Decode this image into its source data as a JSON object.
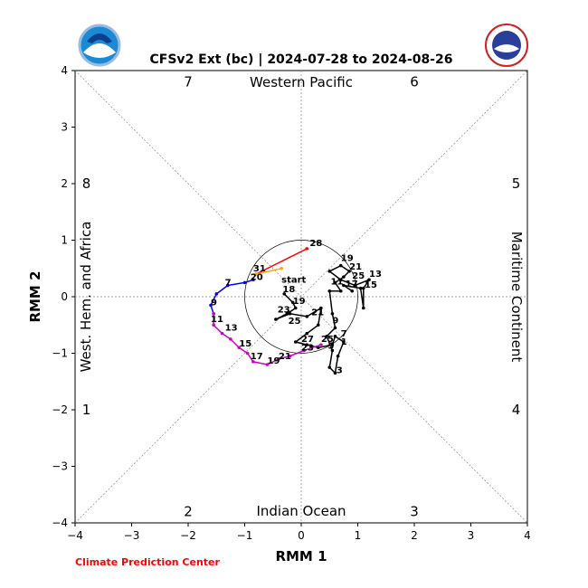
{
  "chart_data": {
    "type": "line",
    "title": "CFSv2 Ext (bc) | 2024-07-28 to 2024-08-26",
    "xlabel": "RMM 1",
    "ylabel": "RMM 2",
    "xlim": [
      -4,
      4
    ],
    "ylim": [
      -4,
      4
    ],
    "xticks": [
      "−4",
      "−3",
      "−2",
      "−1",
      "0",
      "1",
      "2",
      "3",
      "4"
    ],
    "yticks": [
      "−4",
      "−3",
      "−2",
      "−1",
      "0",
      "1",
      "2",
      "3",
      "4"
    ],
    "grid": false,
    "unit_circle_radius": 1,
    "regions": {
      "top": "Western Pacific",
      "bottom": "Indian Ocean",
      "left": "West. Hem. and Africa",
      "right": "Maritime Continent"
    },
    "phase_labels": [
      {
        "label": "1",
        "x": -3.8,
        "y": -2.0
      },
      {
        "label": "2",
        "x": -2.0,
        "y": -3.8
      },
      {
        "label": "3",
        "x": 2.0,
        "y": -3.8
      },
      {
        "label": "4",
        "x": 3.8,
        "y": -2.0
      },
      {
        "label": "5",
        "x": 3.8,
        "y": 2.0
      },
      {
        "label": "6",
        "x": 2.0,
        "y": 3.8
      },
      {
        "label": "7",
        "x": -2.0,
        "y": 3.8
      },
      {
        "label": "8",
        "x": -3.8,
        "y": 2.0
      }
    ],
    "credit": "Climate Prediction Center",
    "series": [
      {
        "color": "#000000",
        "points": [
          [
            -0.3,
            0.05
          ],
          [
            -0.15,
            -0.1
          ],
          [
            -0.1,
            -0.2
          ],
          [
            -0.25,
            -0.3
          ],
          [
            -0.45,
            -0.4
          ],
          [
            -0.2,
            -0.3
          ],
          [
            0.1,
            -0.35
          ],
          [
            0.35,
            -0.2
          ],
          [
            0.3,
            -0.5
          ],
          [
            0.1,
            -0.65
          ],
          [
            -0.1,
            -0.8
          ],
          [
            0.1,
            -0.85
          ],
          [
            0.3,
            -0.9
          ],
          [
            0.55,
            -0.85
          ],
          [
            0.6,
            -0.7
          ],
          [
            0.75,
            -0.8
          ],
          [
            0.65,
            -1.05
          ],
          [
            0.6,
            -1.35
          ],
          [
            0.5,
            -1.25
          ],
          [
            0.55,
            -0.95
          ],
          [
            0.45,
            -0.7
          ],
          [
            0.6,
            -0.55
          ],
          [
            0.55,
            -0.3
          ],
          [
            0.5,
            0.1
          ],
          [
            0.7,
            0.1
          ],
          [
            0.6,
            0.25
          ],
          [
            0.75,
            0.35
          ],
          [
            0.85,
            0.45
          ],
          [
            0.7,
            0.55
          ],
          [
            0.5,
            0.45
          ],
          [
            0.7,
            0.3
          ],
          [
            0.95,
            0.2
          ],
          [
            1.2,
            0.3
          ],
          [
            1.1,
            0.15
          ],
          [
            1.1,
            -0.2
          ],
          [
            1.05,
            0.15
          ],
          [
            0.75,
            0.2
          ],
          [
            0.9,
            0.1
          ]
        ]
      },
      {
        "color": "#ff0000",
        "points": [
          [
            0.1,
            0.85
          ],
          [
            -0.8,
            0.4
          ]
        ]
      },
      {
        "color": "#ffa500",
        "points": [
          [
            -0.8,
            0.4
          ],
          [
            -0.35,
            0.5
          ]
        ]
      },
      {
        "color": "#0000ff",
        "points": [
          [
            -0.85,
            0.3
          ],
          [
            -1.0,
            0.25
          ],
          [
            -1.3,
            0.2
          ],
          [
            -1.5,
            0.05
          ],
          [
            -1.6,
            -0.15
          ],
          [
            -1.55,
            -0.3
          ]
        ]
      },
      {
        "color": "#cc00cc",
        "points": [
          [
            -1.55,
            -0.3
          ],
          [
            -1.55,
            -0.5
          ],
          [
            -1.4,
            -0.65
          ],
          [
            -1.25,
            -0.75
          ],
          [
            -1.1,
            -0.9
          ],
          [
            -0.95,
            -1.0
          ],
          [
            -0.85,
            -1.15
          ],
          [
            -0.6,
            -1.2
          ],
          [
            -0.4,
            -1.1
          ],
          [
            -0.2,
            -1.05
          ],
          [
            0.05,
            -0.95
          ],
          [
            0.35,
            -0.85
          ]
        ]
      }
    ],
    "day_labels": [
      {
        "text": "28",
        "x": 0.15,
        "y": 0.9
      },
      {
        "text": "31",
        "x": -0.85,
        "y": 0.45
      },
      {
        "text": "20",
        "x": -0.9,
        "y": 0.3
      },
      {
        "text": "7",
        "x": -1.35,
        "y": 0.2
      },
      {
        "text": "9",
        "x": -1.6,
        "y": -0.15
      },
      {
        "text": "11",
        "x": -1.6,
        "y": -0.45
      },
      {
        "text": "13",
        "x": -1.35,
        "y": -0.6
      },
      {
        "text": "15",
        "x": -1.1,
        "y": -0.88
      },
      {
        "text": "17",
        "x": -0.9,
        "y": -1.1
      },
      {
        "text": "19",
        "x": -0.6,
        "y": -1.18
      },
      {
        "text": "21",
        "x": -0.4,
        "y": -1.1
      },
      {
        "text": "23",
        "x": 0.0,
        "y": -0.95
      },
      {
        "text": "25",
        "x": 0.35,
        "y": -0.8
      },
      {
        "text": "27",
        "x": 0.0,
        "y": -0.8
      },
      {
        "text": "start",
        "x": -0.35,
        "y": 0.25
      },
      {
        "text": "18",
        "x": -0.33,
        "y": 0.08
      },
      {
        "text": "19",
        "x": -0.15,
        "y": -0.13
      },
      {
        "text": "23",
        "x": -0.42,
        "y": -0.28
      },
      {
        "text": "21",
        "x": 0.18,
        "y": -0.33
      },
      {
        "text": "25",
        "x": -0.23,
        "y": -0.48
      },
      {
        "text": "9",
        "x": 0.55,
        "y": -0.47
      },
      {
        "text": "7",
        "x": 0.7,
        "y": -0.7
      },
      {
        "text": "1",
        "x": 0.7,
        "y": -0.85
      },
      {
        "text": "3",
        "x": 0.62,
        "y": -1.35
      },
      {
        "text": "5",
        "x": 0.47,
        "y": -0.92
      },
      {
        "text": "19",
        "x": 0.7,
        "y": 0.63
      },
      {
        "text": "21",
        "x": 0.85,
        "y": 0.48
      },
      {
        "text": "25",
        "x": 0.9,
        "y": 0.32
      },
      {
        "text": "13",
        "x": 1.2,
        "y": 0.35
      },
      {
        "text": "15",
        "x": 1.12,
        "y": 0.16
      },
      {
        "text": "17",
        "x": 0.78,
        "y": 0.18
      },
      {
        "text": "11",
        "x": 0.52,
        "y": 0.22
      }
    ]
  }
}
